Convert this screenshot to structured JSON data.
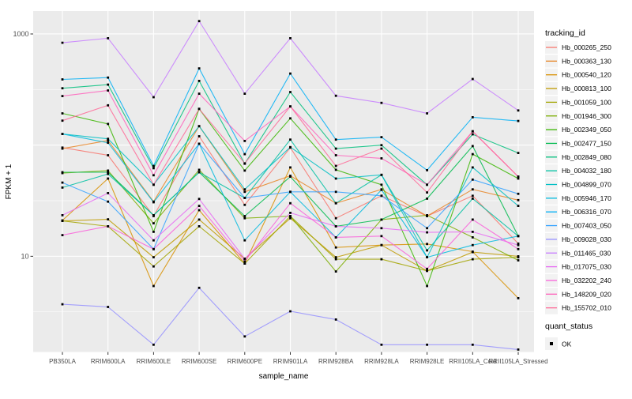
{
  "figure": {
    "background": "#FFFFFF",
    "panel_bg": "#EBEBEB",
    "grid_color": "#FFFFFF",
    "tick_label_color": "#4D4D4D",
    "axis_title_color": "#000000",
    "point_color": "#000000",
    "legend_key_bg": "#F2F2F2"
  },
  "chart_data": {
    "type": "line",
    "title": "",
    "xlabel": "sample_name",
    "ylabel": "FPKM + 1",
    "y_scale": "log10",
    "ylim": [
      1.35,
      1600
    ],
    "grid": "on",
    "legend_position": "right",
    "legend_title": "tracking_id",
    "y_ticks": [
      {
        "label": "1000",
        "value": 1000
      },
      {
        "label": "10",
        "value": 10
      }
    ],
    "y_major_gridline_values": [
      10,
      100,
      1000
    ],
    "y_minor_gridline_values": [
      3.16,
      31.6,
      316
    ],
    "categories": [
      "PB350LA",
      "RRIM600LA",
      "RRIM600LE",
      "RRIM600SE",
      "RRIM600PE",
      "RRIM901LA",
      "RRIM928BA",
      "RRIM928LA",
      "RRIM928LE",
      "RRII105LA_Cold",
      "RRII105LA_Stressed"
    ],
    "series": [
      {
        "name": "Hb_000265_250",
        "color": "#F8766D",
        "values": [
          95,
          81,
          23,
          120,
          29,
          95,
          22,
          35,
          23,
          35,
          13
        ]
      },
      {
        "name": "Hb_000363_130",
        "color": "#E88526",
        "values": [
          93,
          110,
          31,
          148,
          38,
          53,
          30,
          40,
          23,
          40,
          32
        ]
      },
      {
        "name": "Hb_000540_120",
        "color": "#D89000",
        "values": [
          21,
          50,
          5.4,
          26,
          8.6,
          63,
          12,
          12.6,
          12.9,
          11,
          4.2
        ]
      },
      {
        "name": "Hb_000813_100",
        "color": "#C09B00",
        "values": [
          20.8,
          21.5,
          9.8,
          21.4,
          9.5,
          22,
          9.8,
          12.6,
          7.4,
          10.9,
          10
        ]
      },
      {
        "name": "Hb_001059_100",
        "color": "#A3A500",
        "values": [
          20.8,
          18.6,
          8.1,
          18.6,
          8.6,
          23,
          9.4,
          9.4,
          7.4,
          9.4,
          9.8
        ]
      },
      {
        "name": "Hb_001946_300",
        "color": "#7CAE00",
        "values": [
          56,
          59,
          19.8,
          60,
          22,
          23,
          7.3,
          21.4,
          23.4,
          14.8,
          9.2
        ]
      },
      {
        "name": "Hb_002349_050",
        "color": "#39B600",
        "values": [
          193,
          155,
          16.6,
          212,
          59,
          174,
          60,
          44,
          5.4,
          83,
          50
        ]
      },
      {
        "name": "Hb_002477_150",
        "color": "#00BB4E",
        "values": [
          57,
          57,
          23.4,
          57,
          23,
          52,
          18.6,
          21.4,
          33,
          98,
          15.2
        ]
      },
      {
        "name": "Hb_002849_080",
        "color": "#00BF7D",
        "values": [
          325,
          350,
          62,
          378,
          68,
          300,
          93,
          100,
          44,
          125,
          85
        ]
      },
      {
        "name": "Hb_004032_180",
        "color": "#00C1A3",
        "values": [
          41.5,
          55,
          23.4,
          57,
          33.5,
          112,
          30,
          54,
          11.3,
          33,
          15.2
        ]
      },
      {
        "name": "Hb_004899_070",
        "color": "#00BFC4",
        "values": [
          126,
          114,
          44,
          148,
          40,
          96,
          50,
          54,
          9.8,
          63,
          28.4
        ]
      },
      {
        "name": "Hb_005946_170",
        "color": "#00BADE",
        "values": [
          126,
          105,
          30.6,
          103,
          13.9,
          38,
          14.8,
          39.6,
          9.8,
          12.6,
          15.2
        ]
      },
      {
        "name": "Hb_006316_070",
        "color": "#00B0F6",
        "values": [
          390,
          405,
          65,
          490,
          83,
          440,
          112,
          118,
          59.5,
          178,
          165
        ]
      },
      {
        "name": "Hb_007403_050",
        "color": "#35A2FF",
        "values": [
          46,
          31,
          11.6,
          103,
          33.5,
          38,
          38,
          35,
          17.9,
          49,
          36.5
        ]
      },
      {
        "name": "Hb_009028_030",
        "color": "#9590FF",
        "values": [
          3.7,
          3.5,
          1.6,
          5.2,
          1.9,
          3.2,
          2.7,
          1.6,
          1.6,
          1.6,
          1.45
        ]
      },
      {
        "name": "Hb_011465_030",
        "color": "#C77CFF",
        "values": [
          834,
          915,
          270,
          1306,
          290,
          915,
          278,
          240,
          193,
          393,
          205
        ]
      },
      {
        "name": "Hb_017075_030",
        "color": "#E76BF3",
        "values": [
          23.4,
          37,
          13.9,
          32.8,
          9.5,
          24.6,
          18.6,
          17.9,
          16.4,
          16.6,
          12.6
        ]
      },
      {
        "name": "Hb_032202_240",
        "color": "#FA62DB",
        "values": [
          15.5,
          18.6,
          11.6,
          28.4,
          9.0,
          30,
          14.8,
          15.2,
          7.7,
          21.4,
          11.6
        ]
      },
      {
        "name": "Hb_148209_020",
        "color": "#FF62BC",
        "values": [
          276,
          310,
          53.6,
          290,
          109,
          223,
          81,
          76,
          44,
          133,
          52
        ]
      },
      {
        "name": "Hb_155702_010",
        "color": "#FF6A98",
        "values": [
          166,
          228,
          44,
          212,
          68.5,
          223,
          65,
          93,
          37.5,
          133,
          52
        ]
      }
    ],
    "legend2_title": "quant_status",
    "legend2_items": [
      {
        "label": "OK",
        "marker": "black-square"
      }
    ]
  }
}
